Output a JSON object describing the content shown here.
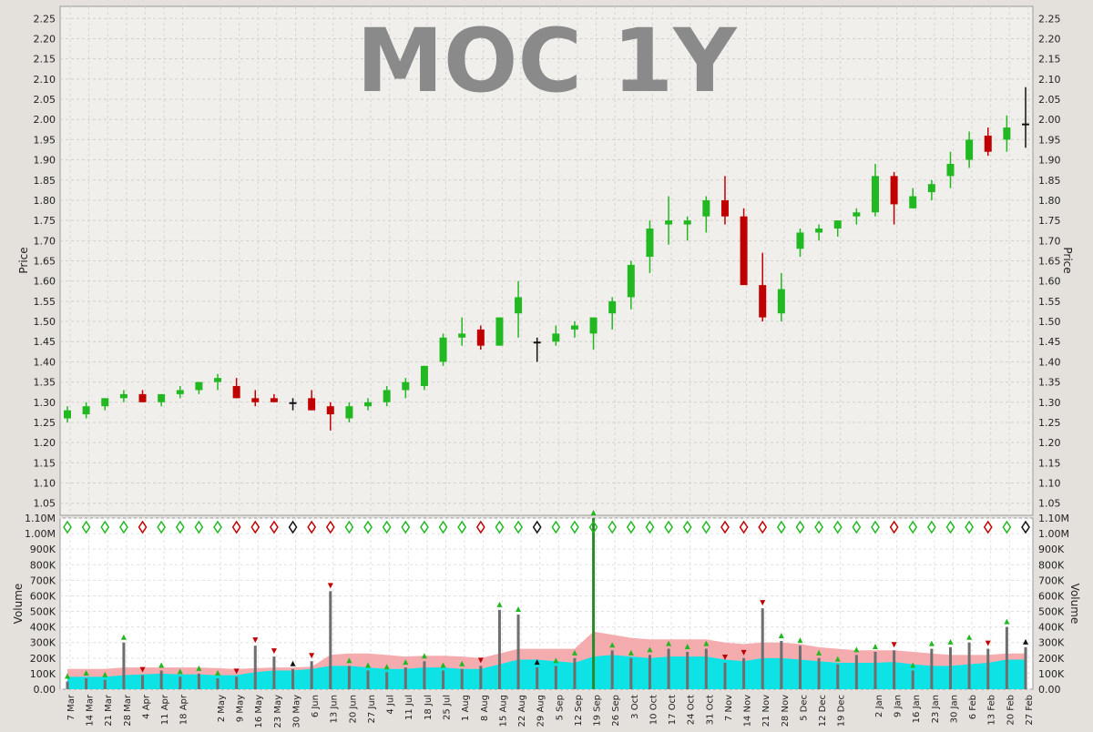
{
  "chart_data": [
    {
      "type": "candlestick",
      "title": "MOC 1Y",
      "ylabel": "Price",
      "ylim": [
        1.02,
        2.28
      ],
      "yticks": [
        "1.05",
        "1.10",
        "1.15",
        "1.20",
        "1.25",
        "1.30",
        "1.35",
        "1.40",
        "1.45",
        "1.50",
        "1.55",
        "1.60",
        "1.65",
        "1.70",
        "1.75",
        "1.80",
        "1.85",
        "1.90",
        "1.95",
        "2.00",
        "2.05",
        "2.10",
        "2.15",
        "2.20",
        "2.25"
      ],
      "grid": true,
      "series": [
        {
          "name": "",
          "x": [
            "2023-03-06",
            "2023-03-13",
            "2023-03-20",
            "2023-03-27",
            "2023-04-03",
            "2023-04-10",
            "2023-04-17",
            "2023-04-24",
            "2023-05-01",
            "2023-05-08",
            "2023-05-15",
            "2023-05-22",
            "2023-05-29",
            "2023-06-05",
            "2023-06-12",
            "2023-06-19",
            "2023-06-26",
            "2023-07-03",
            "2023-07-10",
            "2023-07-17",
            "2023-07-24",
            "2023-07-31",
            "2023-08-07",
            "2023-08-14",
            "2023-08-21",
            "2023-08-28",
            "2023-09-04",
            "2023-09-11",
            "2023-09-18",
            "2023-09-25",
            "2023-10-02",
            "2023-10-09",
            "2023-10-16",
            "2023-10-23",
            "2023-10-30",
            "2023-11-06",
            "2023-11-13",
            "2023-11-20",
            "2023-11-27",
            "2023-12-04",
            "2023-12-11",
            "2023-12-18",
            "2023-12-25",
            "2024-01-01",
            "2024-01-08",
            "2024-01-15",
            "2024-01-22",
            "2024-01-29",
            "2024-02-05",
            "2024-02-12",
            "2024-02-19",
            "2024-02-26"
          ],
          "open": [
            1.26,
            1.27,
            1.29,
            1.31,
            1.32,
            1.3,
            1.32,
            1.33,
            1.35,
            1.34,
            1.31,
            1.31,
            1.3,
            1.31,
            1.29,
            1.26,
            1.29,
            1.3,
            1.33,
            1.34,
            1.4,
            1.46,
            1.48,
            1.44,
            1.52,
            1.45,
            1.45,
            1.48,
            1.47,
            1.52,
            1.56,
            1.66,
            1.74,
            1.74,
            1.76,
            1.8,
            1.76,
            1.59,
            1.52,
            1.68,
            1.72,
            1.73,
            1.76,
            1.77,
            1.86,
            1.78,
            1.82,
            1.86,
            1.9,
            1.96,
            1.95,
            1.99
          ],
          "high": [
            1.29,
            1.3,
            1.31,
            1.33,
            1.33,
            1.32,
            1.34,
            1.35,
            1.37,
            1.36,
            1.33,
            1.32,
            1.31,
            1.33,
            1.3,
            1.3,
            1.31,
            1.34,
            1.36,
            1.39,
            1.47,
            1.51,
            1.49,
            1.5,
            1.6,
            1.46,
            1.49,
            1.5,
            1.5,
            1.56,
            1.65,
            1.75,
            1.81,
            1.76,
            1.81,
            1.86,
            1.78,
            1.67,
            1.62,
            1.73,
            1.74,
            1.75,
            1.78,
            1.89,
            1.87,
            1.83,
            1.85,
            1.92,
            1.97,
            1.98,
            2.01,
            2.08
          ],
          "low": [
            1.25,
            1.26,
            1.28,
            1.3,
            1.3,
            1.29,
            1.31,
            1.32,
            1.33,
            1.31,
            1.29,
            1.3,
            1.28,
            1.28,
            1.23,
            1.25,
            1.28,
            1.29,
            1.31,
            1.33,
            1.39,
            1.44,
            1.43,
            1.44,
            1.46,
            1.4,
            1.44,
            1.46,
            1.43,
            1.48,
            1.53,
            1.62,
            1.69,
            1.7,
            1.72,
            1.74,
            1.6,
            1.5,
            1.5,
            1.66,
            1.7,
            1.71,
            1.74,
            1.76,
            1.74,
            1.78,
            1.8,
            1.83,
            1.88,
            1.91,
            1.92,
            1.93
          ],
          "close": [
            1.28,
            1.29,
            1.31,
            1.32,
            1.3,
            1.32,
            1.33,
            1.35,
            1.36,
            1.31,
            1.3,
            1.3,
            1.3,
            1.28,
            1.27,
            1.29,
            1.3,
            1.33,
            1.35,
            1.39,
            1.46,
            1.47,
            1.44,
            1.51,
            1.56,
            1.45,
            1.47,
            1.49,
            1.51,
            1.55,
            1.64,
            1.73,
            1.75,
            1.75,
            1.8,
            1.76,
            1.59,
            1.51,
            1.58,
            1.72,
            1.73,
            1.75,
            1.77,
            1.86,
            1.79,
            1.81,
            1.84,
            1.89,
            1.95,
            1.92,
            1.98,
            1.99
          ]
        }
      ]
    },
    {
      "type": "bar",
      "ylabel": "Volume",
      "ylim": [
        0,
        1100000
      ],
      "yticks": [
        "0.00",
        "100K",
        "200K",
        "300K",
        "400K",
        "500K",
        "600K",
        "700K",
        "800K",
        "900K",
        "1.00M",
        "1.10M"
      ],
      "xtick_labels": [
        "7 Mar",
        "14 Mar",
        "21 Mar",
        "28 Mar",
        "4 Apr",
        "11 Apr",
        "18 Apr",
        "2 May",
        "9 May",
        "16 May",
        "23 May",
        "30 May",
        "6 Jun",
        "13 Jun",
        "20 Jun",
        "27 Jun",
        "4 Jul",
        "11 Jul",
        "18 Jul",
        "25 Jul",
        "1 Aug",
        "8 Aug",
        "15 Aug",
        "22 Aug",
        "29 Aug",
        "5 Sep",
        "12 Sep",
        "19 Sep",
        "26 Sep",
        "3 Oct",
        "10 Oct",
        "17 Oct",
        "24 Oct",
        "31 Oct",
        "7 Nov",
        "14 Nov",
        "21 Nov",
        "28 Nov",
        "5 Dec",
        "12 Dec",
        "19 Dec",
        "2 Jan",
        "9 Jan",
        "16 Jan",
        "23 Jan",
        "30 Jan",
        "6 Feb",
        "13 Feb",
        "20 Feb",
        "27 Feb"
      ],
      "grid": true,
      "series": [
        {
          "name": "",
          "x": [
            "2023-03-06",
            "2023-03-13",
            "2023-03-20",
            "2023-03-27",
            "2023-04-03",
            "2023-04-10",
            "2023-04-17",
            "2023-04-24",
            "2023-05-01",
            "2023-05-08",
            "2023-05-15",
            "2023-05-22",
            "2023-05-29",
            "2023-06-05",
            "2023-06-12",
            "2023-06-19",
            "2023-06-26",
            "2023-07-03",
            "2023-07-10",
            "2023-07-17",
            "2023-07-24",
            "2023-07-31",
            "2023-08-07",
            "2023-08-14",
            "2023-08-21",
            "2023-08-28",
            "2023-09-04",
            "2023-09-11",
            "2023-09-18",
            "2023-09-25",
            "2023-10-02",
            "2023-10-09",
            "2023-10-16",
            "2023-10-23",
            "2023-10-30",
            "2023-11-06",
            "2023-11-13",
            "2023-11-20",
            "2023-11-27",
            "2023-12-04",
            "2023-12-11",
            "2023-12-18",
            "2023-12-25",
            "2024-01-01",
            "2024-01-08",
            "2024-01-15",
            "2024-01-22",
            "2024-01-29",
            "2024-02-05",
            "2024-02-12",
            "2024-02-19",
            "2024-02-26"
          ],
          "values": [
            50000,
            70000,
            60000,
            300000,
            90000,
            120000,
            80000,
            100000,
            70000,
            80000,
            280000,
            210000,
            130000,
            180000,
            630000,
            150000,
            120000,
            110000,
            140000,
            180000,
            120000,
            130000,
            150000,
            510000,
            480000,
            140000,
            150000,
            200000,
            1100000,
            250000,
            200000,
            220000,
            260000,
            240000,
            260000,
            170000,
            200000,
            520000,
            310000,
            280000,
            200000,
            160000,
            220000,
            240000,
            250000,
            120000,
            260000,
            270000,
            300000,
            260000,
            400000,
            270000
          ],
          "avg_fast": [
            80000,
            80000,
            80000,
            90000,
            95000,
            100000,
            95000,
            95000,
            90000,
            90000,
            110000,
            120000,
            120000,
            130000,
            150000,
            150000,
            140000,
            130000,
            130000,
            140000,
            140000,
            130000,
            130000,
            160000,
            190000,
            190000,
            180000,
            170000,
            210000,
            220000,
            210000,
            200000,
            210000,
            210000,
            210000,
            190000,
            180000,
            200000,
            200000,
            190000,
            180000,
            170000,
            170000,
            170000,
            175000,
            160000,
            150000,
            150000,
            160000,
            170000,
            190000,
            190000
          ],
          "avg_slow": [
            130000,
            130000,
            130000,
            140000,
            140000,
            140000,
            140000,
            140000,
            135000,
            130000,
            135000,
            140000,
            140000,
            145000,
            220000,
            230000,
            230000,
            220000,
            210000,
            215000,
            215000,
            210000,
            200000,
            230000,
            260000,
            260000,
            260000,
            260000,
            370000,
            350000,
            330000,
            320000,
            320000,
            320000,
            320000,
            300000,
            290000,
            300000,
            300000,
            290000,
            270000,
            260000,
            250000,
            250000,
            250000,
            240000,
            230000,
            220000,
            220000,
            220000,
            230000,
            230000
          ]
        }
      ],
      "colors": {
        "up": "#22b822",
        "down": "#c00000",
        "neutral": "#111111",
        "avg_fast": "#00e5e8",
        "avg_slow": "#f4a3a6",
        "spike": "#2a8a2a"
      }
    }
  ]
}
